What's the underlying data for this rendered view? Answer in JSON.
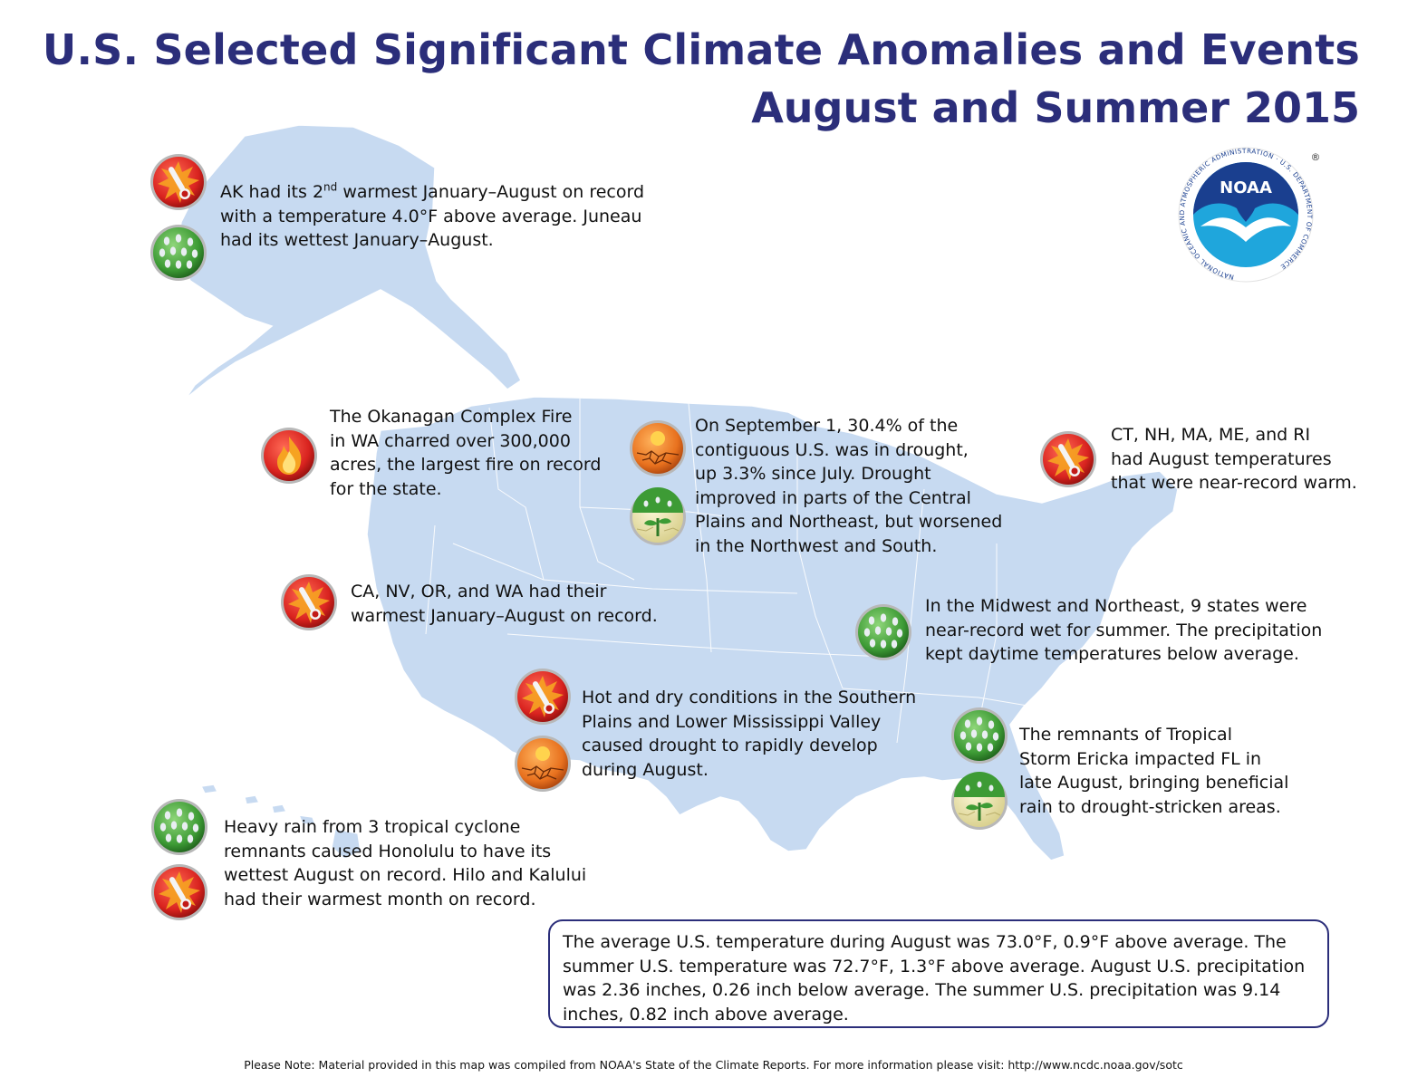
{
  "header": {
    "title_line1": "U.S. Selected Significant Climate Anomalies and Events",
    "title_line2": "August and Summer 2015"
  },
  "logo": {
    "label": "NOAA",
    "ring_text": "NATIONAL OCEANIC AND ATMOSPHERIC ADMINISTRATION · U.S. DEPARTMENT OF COMMERCE",
    "registered": "®"
  },
  "callouts": {
    "alaska": {
      "pre": "AK had its 2",
      "sup": "nd",
      "line1_rest": " warmest January–August on record",
      "line2": "with a temperature 4.0°F above average. Juneau",
      "line3": "had its wettest January–August."
    },
    "okanagan": {
      "line1": "The Okanagan Complex Fire",
      "line2": "in WA charred over 300,000",
      "line3": "acres, the largest fire on record",
      "line4": "for the state."
    },
    "drought_national": {
      "line1": "On September 1, 30.4% of the",
      "line2": "contiguous U.S. was in drought,",
      "line3": "up 3.3% since July. Drought",
      "line4": "improved in parts of the Central",
      "line5": "Plains and Northeast, but worsened",
      "line6": "in the Northwest and South."
    },
    "new_england": {
      "line1": "CT, NH, MA, ME, and RI",
      "line2": "had August temperatures",
      "line3": "that were near-record warm."
    },
    "west_coast": {
      "line1": "CA, NV, OR, and WA had their",
      "line2": "warmest January–August on record."
    },
    "midwest": {
      "line1": "In the Midwest and Northeast, 9 states were",
      "line2": "near-record wet for summer. The precipitation",
      "line3": "kept daytime temperatures below average."
    },
    "southern_plains": {
      "line1": "Hot and dry conditions in the Southern",
      "line2": "Plains and Lower Mississippi Valley",
      "line3": "caused drought to rapidly develop",
      "line4": "during August."
    },
    "florida": {
      "line1": "The remnants of Tropical",
      "line2": "Storm Ericka impacted FL in",
      "line3": "late August, bringing beneficial",
      "line4": "rain to drought-stricken areas."
    },
    "hawaii": {
      "line1": "Heavy rain from 3 tropical cyclone",
      "line2": "remnants caused Honolulu to have its",
      "line3": "wettest August on record. Hilo and Kalului",
      "line4": "had their warmest month on record."
    }
  },
  "summary": {
    "line1": "The average U.S. temperature during August was 73.0°F, 0.9°F above average. The",
    "line2": "summer U.S. temperature was 72.7°F, 1.3°F above average. August U.S. precipitation",
    "line3": "was 2.36 inches, 0.26 inch below average. The summer U.S. precipitation was 9.14",
    "line4": "inches, 0.82 inch above average."
  },
  "footer": {
    "note": "Please Note: Material provided in this map was compiled from NOAA's State of the Climate Reports. For more information please visit: http://www.ncdc.noaa.gov/sotc"
  },
  "icons": {
    "alaska": [
      "warm-icon",
      "wet-icon"
    ],
    "okanagan": [
      "wildfire-icon"
    ],
    "drought_national": [
      "drought-icon",
      "drought-improvement-icon"
    ],
    "new_england": [
      "warm-icon"
    ],
    "west_coast": [
      "warm-icon"
    ],
    "midwest": [
      "wet-icon"
    ],
    "southern_plains": [
      "warm-icon",
      "drought-icon"
    ],
    "florida": [
      "wet-icon",
      "drought-improvement-icon"
    ],
    "hawaii": [
      "wet-icon",
      "warm-icon"
    ]
  },
  "colors": {
    "title": "#2b2e7a",
    "land": "#c7daf1",
    "land_border": "#ffffff",
    "warm_icon": "#d9231f",
    "wet_icon": "#3d9b35",
    "drought_icon": "#e8711e",
    "improve_icon": "#e9e3b0",
    "noaa_blue": "#1a3f8f",
    "noaa_cyan": "#1fa6dc"
  }
}
